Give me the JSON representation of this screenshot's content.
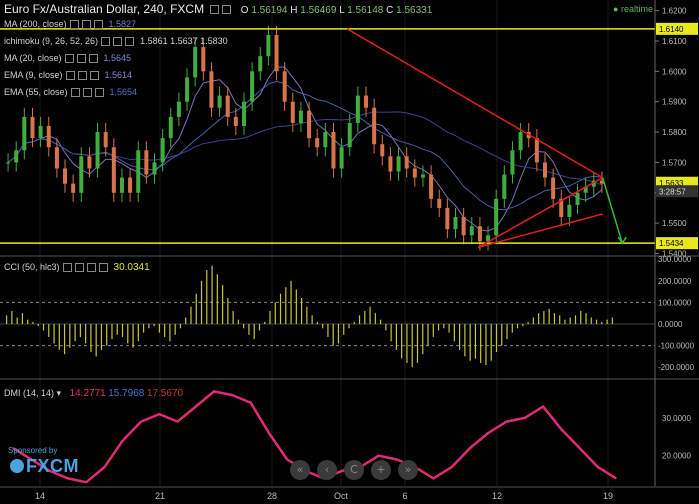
{
  "header": {
    "title": "Euro Fx/Australian Dollar, 240, FXCM",
    "ohlc": {
      "O": "1.56194",
      "H": "1.56469",
      "L": "1.56148",
      "C": "1.56331"
    },
    "realtime_label": "realtime"
  },
  "indicators": [
    {
      "label": "MA (200, close)",
      "value": "1.5827",
      "color": "#7b7bd4"
    },
    {
      "label": "ichimoku (9, 26, 52, 26)",
      "value": "1.5861  1.5637  1.5830",
      "color": "#cccccc"
    },
    {
      "label": "MA (20, close)",
      "value": "1.5645",
      "color": "#6a8fd8"
    },
    {
      "label": "EMA (9, close)",
      "value": "1.5614",
      "color": "#8888cc"
    },
    {
      "label": "EMA (55, close)",
      "value": "1.5654",
      "color": "#5b6fc0"
    }
  ],
  "panels": {
    "cci": {
      "label": "CCI (50, hlc3)",
      "value": "30.0341"
    },
    "dmi": {
      "label": "DMI (14, 14)",
      "values": [
        "14.2771",
        "15.7968",
        "17.5670"
      ],
      "colors": [
        "#e0306f",
        "#4a6fd0",
        "#c0392b"
      ]
    }
  },
  "colors": {
    "up": "#3fae3f",
    "down": "#d9734a",
    "hline": "#e8e81c",
    "trend": "#e02020",
    "arrow": "#2fbf2f",
    "cci": "#c8c830",
    "dmi": "#e02a7a",
    "ma": "#5c6cc8"
  },
  "sponsor": {
    "label": "Sponsored by",
    "brand": "FXCM"
  },
  "nav_buttons": [
    "«",
    "‹",
    "C",
    "+",
    "»"
  ],
  "chart_data": [
    {
      "type": "candlestick",
      "title": "Euro Fx/Australian Dollar, 240, FXCM",
      "x_ticks": [
        "14",
        "21",
        "28",
        "Oct",
        "6",
        "12",
        "19"
      ],
      "y_ticks": [
        "1.6200",
        "1.6100",
        "1.6000",
        "1.5900",
        "1.5800",
        "1.5700",
        "1.5600",
        "1.5500",
        "1.5400"
      ],
      "ylim": [
        1.5395,
        1.6235
      ],
      "xlim": [
        0,
        100
      ],
      "markers": [
        {
          "label": "1.6140",
          "value": 1.614
        },
        {
          "label": "1.5434",
          "value": 1.5434
        },
        {
          "label": "1.5633",
          "value": 1.5633
        },
        {
          "label": "3:28:57",
          "value": 1.5605
        }
      ],
      "close_series": [
        1.57,
        1.574,
        1.585,
        1.578,
        1.582,
        1.575,
        1.568,
        1.563,
        1.56,
        1.572,
        1.568,
        1.58,
        1.575,
        1.56,
        1.565,
        1.56,
        1.574,
        1.566,
        1.57,
        1.578,
        1.585,
        1.59,
        1.598,
        1.608,
        1.6,
        1.588,
        1.592,
        1.585,
        1.582,
        1.59,
        1.6,
        1.605,
        1.612,
        1.6,
        1.59,
        1.583,
        1.587,
        1.578,
        1.575,
        1.58,
        1.568,
        1.575,
        1.583,
        1.592,
        1.588,
        1.576,
        1.572,
        1.567,
        1.572,
        1.568,
        1.565,
        1.566,
        1.558,
        1.555,
        1.548,
        1.552,
        1.546,
        1.549,
        1.544,
        1.546,
        1.558,
        1.566,
        1.574,
        1.58,
        1.578,
        1.57,
        1.565,
        1.558,
        1.552,
        1.556,
        1.56,
        1.562,
        1.564,
        1.563
      ],
      "horizontal_lines": [
        1.614,
        1.5434
      ],
      "trend_lines": [
        {
          "from": [
            53,
            1.614
          ],
          "to": [
            92,
            1.565
          ]
        },
        {
          "from": [
            73,
            1.542
          ],
          "to": [
            92,
            1.565
          ]
        },
        {
          "from": [
            73,
            1.542
          ],
          "to": [
            92,
            1.553
          ]
        }
      ]
    },
    {
      "type": "bar",
      "title": "CCI (50, hlc3)",
      "y_ticks": [
        "300.0000",
        "200.0000",
        "100.0000",
        "0.0000",
        "-100.0000",
        "-200.0000"
      ],
      "ylim": [
        -250,
        310
      ],
      "reference_lines": [
        100,
        -100
      ],
      "values": [
        40,
        60,
        30,
        50,
        20,
        10,
        -10,
        -30,
        -60,
        -90,
        -120,
        -140,
        -110,
        -80,
        -60,
        -90,
        -130,
        -150,
        -120,
        -100,
        -70,
        -50,
        -60,
        -90,
        -110,
        -80,
        -40,
        -20,
        -10,
        -40,
        -60,
        -80,
        -50,
        -20,
        30,
        80,
        140,
        200,
        250,
        270,
        230,
        180,
        120,
        60,
        20,
        -20,
        -50,
        -70,
        -30,
        10,
        60,
        100,
        140,
        170,
        200,
        160,
        120,
        80,
        40,
        10,
        -20,
        -60,
        -100,
        -90,
        -50,
        -20,
        10,
        40,
        60,
        80,
        50,
        20,
        -30,
        -80,
        -120,
        -160,
        -180,
        -200,
        -180,
        -140,
        -100,
        -60,
        -30,
        -20,
        -40,
        -80,
        -120,
        -150,
        -170,
        -160,
        -180,
        -190,
        -170,
        -130,
        -100,
        -70,
        -40,
        -20,
        -10,
        10,
        30,
        50,
        60,
        70,
        50,
        40,
        20,
        30,
        40,
        60,
        50,
        30,
        20,
        10,
        20,
        30
      ]
    },
    {
      "type": "line",
      "title": "DMI (14, 14)",
      "y_ticks": [
        "30.0000",
        "20.0000"
      ],
      "ylim": [
        12,
        40
      ],
      "x": [
        0,
        3,
        6,
        9,
        12,
        15,
        18,
        21,
        24,
        27,
        30,
        33,
        36,
        39,
        42,
        45,
        48,
        51,
        54,
        57,
        60,
        63,
        66,
        69,
        72,
        75,
        78,
        81,
        84,
        87,
        90,
        93,
        96,
        99
      ],
      "values": [
        22,
        19,
        16,
        14,
        13,
        17,
        24,
        29,
        31,
        29,
        33,
        37,
        36,
        34,
        26,
        19,
        16,
        14,
        16,
        17,
        20,
        19,
        17,
        14,
        17,
        22,
        26,
        29,
        30,
        33,
        27,
        22,
        17,
        14
      ]
    }
  ]
}
